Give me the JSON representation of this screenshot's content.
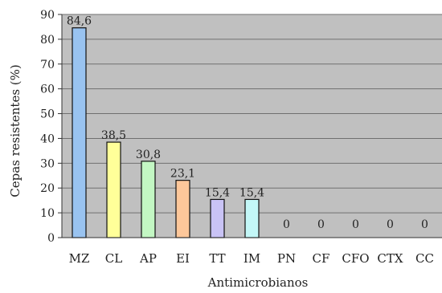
{
  "chart_data": {
    "type": "bar",
    "categories": [
      "MZ",
      "CL",
      "AP",
      "EI",
      "TT",
      "IM",
      "PN",
      "CF",
      "CFO",
      "CTX",
      "CC"
    ],
    "values": [
      84.6,
      38.5,
      30.8,
      23.1,
      15.4,
      15.4,
      0,
      0,
      0,
      0,
      0
    ],
    "data_labels": [
      "84,6",
      "38,5",
      "30,8",
      "23,1",
      "15,4",
      "15,4",
      "0",
      "0",
      "0",
      "0",
      "0"
    ],
    "bar_colors": [
      "#99c3f0",
      "#ffff99",
      "#c3f7c3",
      "#fdc79a",
      "#c9c3f5",
      "#c3f7f7",
      "#dddddd",
      "#dddddd",
      "#dddddd",
      "#dddddd",
      "#dddddd"
    ],
    "xlabel": "Antimicrobianos",
    "ylabel": "Cepas resistentes (%)",
    "ylim": [
      0,
      90
    ],
    "yticks": [
      0,
      10,
      20,
      30,
      40,
      50,
      60,
      70,
      80,
      90
    ],
    "grid": true,
    "legend": "none",
    "background_color": "#c0c0c0"
  }
}
